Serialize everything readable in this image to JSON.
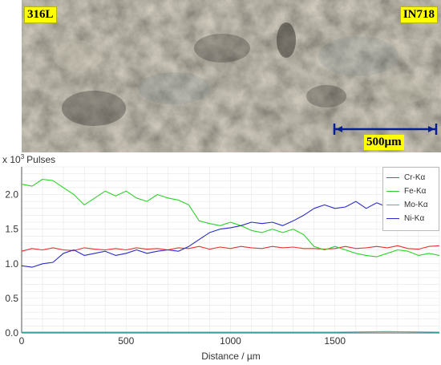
{
  "micrograph": {
    "label_left": "316L",
    "label_right": "IN718",
    "scale_bar_label": "500µm",
    "scale_bar_length_um": 500
  },
  "chart_data": {
    "type": "line",
    "ylabel_prefix": "x 10",
    "ylabel_exponent": "3",
    "ylabel_unit": "Pulses",
    "xlabel": "Distance / µm",
    "xlim": [
      0,
      2000
    ],
    "ylim": [
      0.0,
      2.4
    ],
    "x_ticks": [
      0,
      500,
      1000,
      1500
    ],
    "y_ticks": [
      0.0,
      0.5,
      1.0,
      1.5,
      2.0
    ],
    "x_tick_labels": [
      "0",
      "500",
      "1000",
      "1500"
    ],
    "y_tick_labels": [
      "0.0",
      "0.5",
      "1.0",
      "1.5",
      "2.0"
    ],
    "grid": true,
    "legend_position": "top-right",
    "series": [
      {
        "name": "Cr-Kα",
        "color": "#e8312f",
        "x": [
          0,
          50,
          100,
          150,
          200,
          250,
          300,
          350,
          400,
          450,
          500,
          550,
          600,
          650,
          700,
          750,
          800,
          850,
          900,
          950,
          1000,
          1050,
          1100,
          1150,
          1200,
          1250,
          1300,
          1350,
          1400,
          1450,
          1500,
          1550,
          1600,
          1650,
          1700,
          1750,
          1800,
          1850,
          1900,
          1950,
          2000
        ],
        "y": [
          1.18,
          1.22,
          1.2,
          1.23,
          1.2,
          1.19,
          1.23,
          1.21,
          1.2,
          1.22,
          1.2,
          1.23,
          1.21,
          1.22,
          1.2,
          1.23,
          1.22,
          1.25,
          1.21,
          1.24,
          1.22,
          1.25,
          1.23,
          1.22,
          1.25,
          1.23,
          1.24,
          1.22,
          1.22,
          1.21,
          1.22,
          1.25,
          1.22,
          1.23,
          1.25,
          1.23,
          1.26,
          1.22,
          1.21,
          1.25,
          1.26
        ]
      },
      {
        "name": "Fe-Kα",
        "color": "#2ed12b",
        "x": [
          0,
          50,
          100,
          150,
          200,
          250,
          300,
          350,
          400,
          450,
          500,
          550,
          600,
          650,
          700,
          750,
          800,
          850,
          900,
          950,
          1000,
          1050,
          1100,
          1150,
          1200,
          1250,
          1300,
          1350,
          1400,
          1450,
          1500,
          1550,
          1600,
          1650,
          1700,
          1750,
          1800,
          1850,
          1900,
          1950,
          2000
        ],
        "y": [
          2.15,
          2.12,
          2.22,
          2.2,
          2.1,
          2.0,
          1.85,
          1.95,
          2.05,
          1.98,
          2.05,
          1.95,
          1.9,
          2.0,
          1.95,
          1.92,
          1.85,
          1.62,
          1.58,
          1.55,
          1.6,
          1.55,
          1.48,
          1.45,
          1.5,
          1.45,
          1.5,
          1.42,
          1.25,
          1.2,
          1.25,
          1.2,
          1.15,
          1.12,
          1.1,
          1.15,
          1.2,
          1.18,
          1.12,
          1.15,
          1.12
        ]
      },
      {
        "name": "Mo-Kα",
        "color": "#1ec9c9",
        "x": [
          0,
          250,
          500,
          750,
          1000,
          1250,
          1500,
          1750,
          2000
        ],
        "y": [
          0.01,
          0.01,
          0.01,
          0.01,
          0.01,
          0.01,
          0.01,
          0.02,
          0.01
        ]
      },
      {
        "name": "Ni-Kα",
        "color": "#2b2bcc",
        "x": [
          0,
          50,
          100,
          150,
          200,
          250,
          300,
          350,
          400,
          450,
          500,
          550,
          600,
          650,
          700,
          750,
          800,
          850,
          900,
          950,
          1000,
          1050,
          1100,
          1150,
          1200,
          1250,
          1300,
          1350,
          1400,
          1450,
          1500,
          1550,
          1600,
          1650,
          1700,
          1750,
          1800,
          1850,
          1900,
          1950,
          2000
        ],
        "y": [
          0.97,
          0.95,
          1.0,
          1.02,
          1.15,
          1.2,
          1.12,
          1.15,
          1.18,
          1.12,
          1.15,
          1.2,
          1.15,
          1.18,
          1.2,
          1.18,
          1.25,
          1.35,
          1.45,
          1.5,
          1.52,
          1.55,
          1.6,
          1.58,
          1.6,
          1.55,
          1.62,
          1.7,
          1.8,
          1.85,
          1.8,
          1.82,
          1.9,
          1.8,
          1.88,
          1.82,
          1.85,
          1.88,
          1.85,
          1.9,
          1.9
        ]
      }
    ]
  }
}
